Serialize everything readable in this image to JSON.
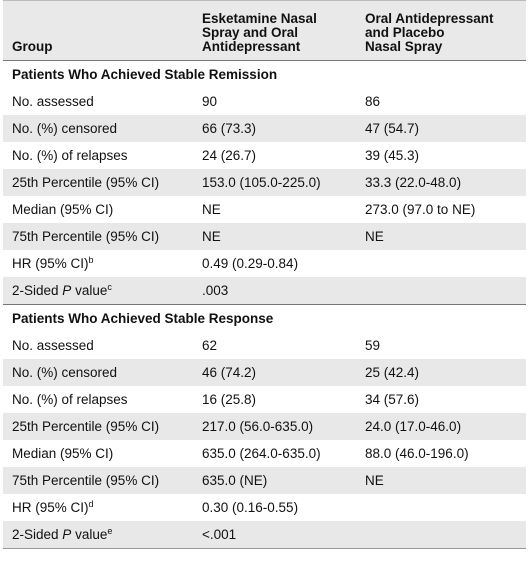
{
  "header": {
    "col1": "Group",
    "col2_l1": "Esketamine Nasal",
    "col2_l2": "Spray and Oral",
    "col2_l3": "Antidepressant",
    "col3_l1": "Oral Antidepressant",
    "col3_l2": "and Placebo",
    "col3_l3": "Nasal Spray"
  },
  "section1": {
    "title": "Patients Who Achieved Stable Remission",
    "rows": [
      {
        "label": "No. assessed",
        "a": "90",
        "b": "86"
      },
      {
        "label": "No. (%) censored",
        "a": "66 (73.3)",
        "b": "47 (54.7)"
      },
      {
        "label": "No. (%) of relapses",
        "a": "24 (26.7)",
        "b": "39 (45.3)"
      },
      {
        "label": "25th Percentile (95% CI)",
        "a": "153.0 (105.0-225.0)",
        "b": "33.3 (22.0-48.0)"
      },
      {
        "label": "Median (95% CI)",
        "a": "NE",
        "b": "273.0 (97.0 to NE)"
      },
      {
        "label": "75th Percentile (95% CI)",
        "a": "NE",
        "b": "NE"
      },
      {
        "label": "HR (95% CI)",
        "sup": "b",
        "a": "0.49 (0.29-0.84)",
        "b": ""
      },
      {
        "label_pre": "2-Sided ",
        "label_it": "P",
        "label_post": " value",
        "sup": "c",
        "a": ".003",
        "b": ""
      }
    ]
  },
  "section2": {
    "title": "Patients Who Achieved Stable Response",
    "rows": [
      {
        "label": "No. assessed",
        "a": "62",
        "b": "59"
      },
      {
        "label": "No. (%) censored",
        "a": "46 (74.2)",
        "b": "25 (42.4)"
      },
      {
        "label": "No. (%) of relapses",
        "a": "16 (25.8)",
        "b": "34 (57.6)"
      },
      {
        "label": "25th Percentile (95% CI)",
        "a": "217.0 (56.0-635.0)",
        "b": "24.0 (17.0-46.0)"
      },
      {
        "label": "Median (95% CI)",
        "a": "635.0 (264.0-635.0)",
        "b": "88.0 (46.0-196.0)"
      },
      {
        "label": "75th Percentile (95% CI)",
        "a": "635.0 (NE)",
        "b": "NE"
      },
      {
        "label": "HR (95% CI)",
        "sup": "d",
        "a": "0.30 (0.16-0.55)",
        "b": ""
      },
      {
        "label_pre": "2-Sided ",
        "label_it": "P",
        "label_post": " value",
        "sup": "e",
        "a": "<.001",
        "b": ""
      }
    ]
  }
}
